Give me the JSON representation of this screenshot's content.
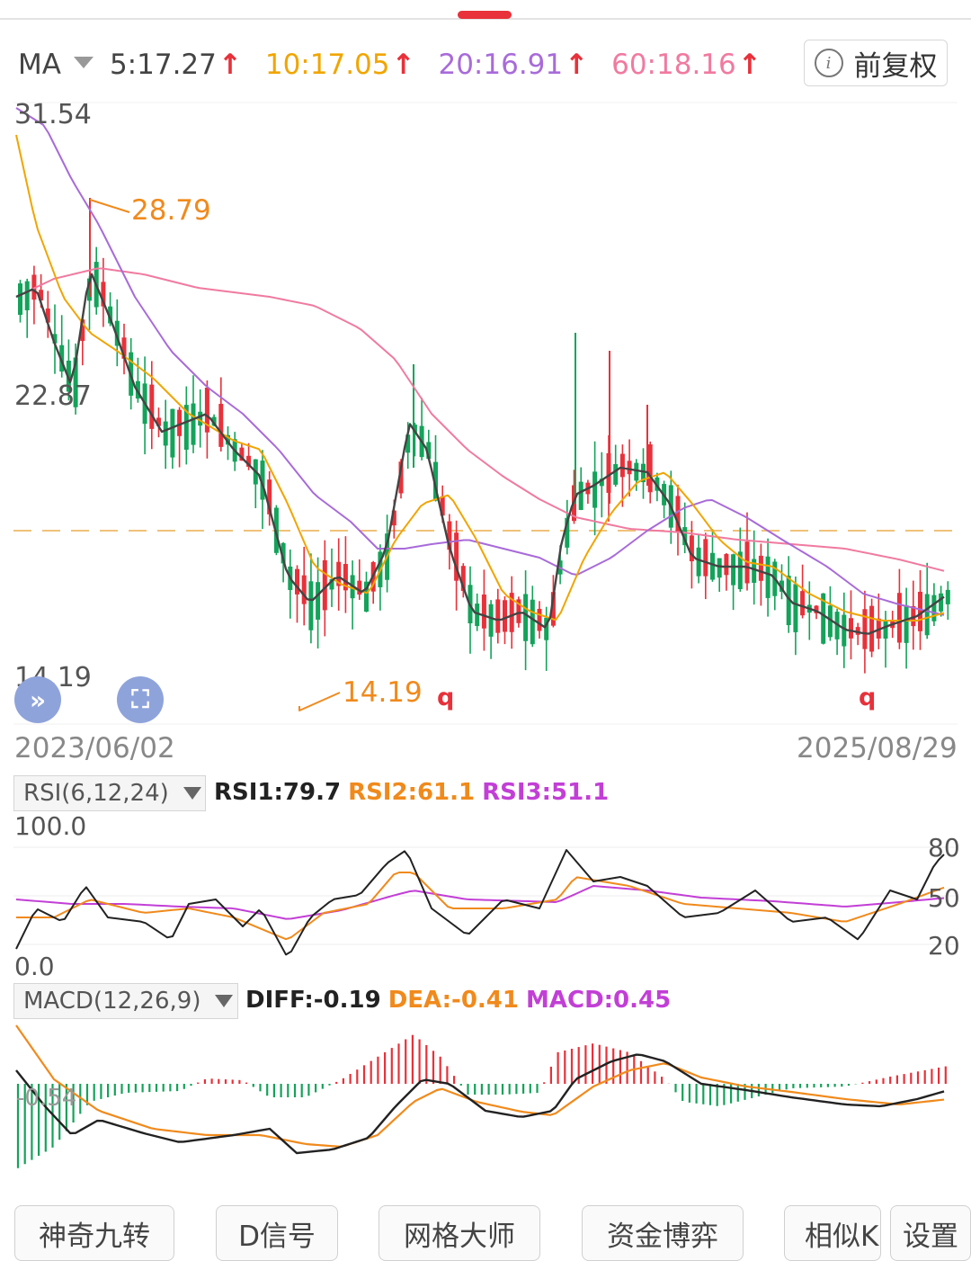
{
  "header": {
    "ma_label": "MA",
    "ma_items": [
      {
        "text": "5:17.27",
        "color": "#444444"
      },
      {
        "text": "10:17.05",
        "color": "#f0a500"
      },
      {
        "text": "20:16.91",
        "color": "#a86bd9"
      },
      {
        "text": "60:18.16",
        "color": "#f07aa0"
      }
    ],
    "up_arrow": "↑",
    "fuquan_label": "前复权",
    "info_icon": "i"
  },
  "main_chart": {
    "y_high": "31.54",
    "y_mid": "22.87",
    "y_low": "14.19",
    "marker_high": "28.79",
    "marker_low": "14.19",
    "q_marks": [
      "q",
      "q"
    ],
    "date_start": "2023/06/02",
    "date_end": "2025/08/29",
    "expand_icon_glyph": "»",
    "fullscreen_icon_glyph": "⛶",
    "colors": {
      "up": "#e8313a",
      "down": "#13a35a",
      "ma5": "#444444",
      "ma10": "#f0a500",
      "ma20": "#a86bd9",
      "ma60": "#f07aa0",
      "current_price": "#f0c27a"
    }
  },
  "rsi": {
    "selector": "RSI(6,12,24)",
    "rsi1": "RSI1:79.7",
    "rsi2": "RSI2:61.1",
    "rsi3": "RSI3:51.1",
    "y_top": "100.0",
    "y_bottom": "0.0",
    "lvl80": "80",
    "lvl50": "50",
    "lvl20": "20"
  },
  "macd": {
    "selector": "MACD(12,26,9)",
    "diff": "DIFF:-0.19",
    "dea": "DEA:-0.41",
    "macd": "MACD:0.45",
    "axis_label": "-0.54"
  },
  "bottom_tabs": [
    "神奇九转",
    "D信号",
    "网格大师",
    "资金博弈",
    "相似K",
    "设置"
  ]
}
